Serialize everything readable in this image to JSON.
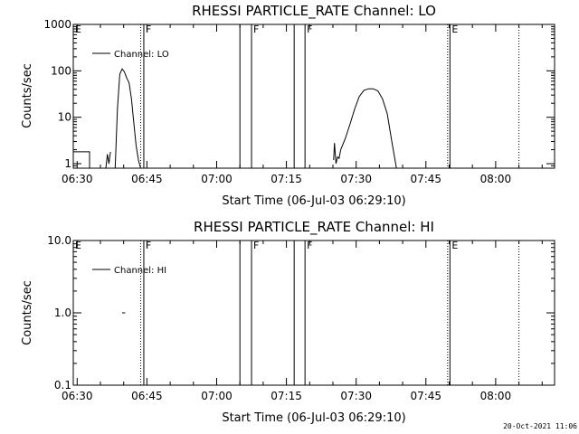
{
  "footer": {
    "timestamp": "20-Oct-2021 11:06"
  },
  "chart_data": [
    {
      "type": "line",
      "title": "RHESSI PARTICLE_RATE Channel: LO",
      "xlabel": "Start Time (06-Jul-03 06:29:10)",
      "ylabel": "Counts/sec",
      "yscale": "log",
      "ylim": [
        0.8,
        1000
      ],
      "xlim": [
        "06:29:10",
        "08:12:40"
      ],
      "xticks": [
        "06:30",
        "06:45",
        "07:00",
        "07:15",
        "07:30",
        "07:45",
        "08:00"
      ],
      "yticks": [
        "1",
        "10",
        "100",
        "1000"
      ],
      "legend": {
        "position": "top-left",
        "entries": [
          "Channel: LO"
        ]
      },
      "series": [
        {
          "name": "Channel: LO",
          "segments": [
            {
              "x": [
                "06:29:10",
                "06:29:10",
                "06:32:40",
                "06:32:40"
              ],
              "y": [
                1,
                1.8,
                1.8,
                0.8
              ]
            },
            {
              "x": [
                "06:36:10",
                "06:36:30",
                "06:36:50",
                "06:37:10"
              ],
              "y": [
                0.8,
                1.6,
                1.0,
                1.8
              ]
            },
            {
              "x": [
                "06:38:10",
                "06:38:40",
                "06:39:10",
                "06:39:40",
                "06:40:10",
                "06:40:40",
                "06:41:10",
                "06:41:40",
                "06:42:10",
                "06:42:40",
                "06:43:10",
                "06:43:40"
              ],
              "y": [
                0.8,
                15,
                85,
                110,
                95,
                70,
                55,
                25,
                8,
                2.5,
                1.2,
                0.8
              ]
            },
            {
              "x": [
                "07:25:10",
                "07:25:20",
                "07:25:40",
                "07:26:00",
                "07:26:20",
                "07:26:40"
              ],
              "y": [
                1.2,
                2.8,
                1.0,
                1.4,
                1.3,
                2.0
              ]
            },
            {
              "x": [
                "07:26:40",
                "07:27:40",
                "07:28:40",
                "07:29:40",
                "07:30:40",
                "07:31:40",
                "07:32:40",
                "07:33:40",
                "07:34:40",
                "07:35:40",
                "07:36:40",
                "07:37:40",
                "07:38:40"
              ],
              "y": [
                2.0,
                3.5,
                7,
                15,
                28,
                38,
                41,
                41,
                37,
                25,
                12,
                3,
                0.8
              ]
            }
          ]
        }
      ],
      "markers": [
        {
          "time": "06:29:10",
          "label": "E",
          "style": "solid"
        },
        {
          "time": "06:43:40",
          "label": "",
          "style": "dotted"
        },
        {
          "time": "06:44:20",
          "label": "F",
          "style": "solid"
        },
        {
          "time": "07:05:00",
          "label": "",
          "style": "solid"
        },
        {
          "time": "07:07:30",
          "label": "F",
          "style": "solid"
        },
        {
          "time": "07:16:40",
          "label": "",
          "style": "solid"
        },
        {
          "time": "07:19:00",
          "label": "F",
          "style": "solid"
        },
        {
          "time": "07:49:40",
          "label": "",
          "style": "dotted"
        },
        {
          "time": "07:50:10",
          "label": "E",
          "style": "solid"
        },
        {
          "time": "08:05:00",
          "label": "",
          "style": "dotted"
        }
      ]
    },
    {
      "type": "line",
      "title": "RHESSI PARTICLE_RATE Channel: HI",
      "xlabel": "Start Time (06-Jul-03 06:29:10)",
      "ylabel": "Counts/sec",
      "yscale": "log",
      "ylim": [
        0.1,
        10
      ],
      "xlim": [
        "06:29:10",
        "08:12:40"
      ],
      "xticks": [
        "06:30",
        "06:45",
        "07:00",
        "07:15",
        "07:30",
        "07:45",
        "08:00"
      ],
      "yticks": [
        "0.1",
        "1.0",
        "10.0"
      ],
      "legend": {
        "position": "top-left",
        "entries": [
          "Channel: HI"
        ]
      },
      "series": [
        {
          "name": "Channel: HI",
          "segments": [
            {
              "x": [
                "06:39:40",
                "06:40:20"
              ],
              "y": [
                1.0,
                1.0
              ]
            }
          ]
        }
      ],
      "markers": [
        {
          "time": "06:29:10",
          "label": "E",
          "style": "solid"
        },
        {
          "time": "06:43:40",
          "label": "",
          "style": "dotted"
        },
        {
          "time": "06:44:20",
          "label": "F",
          "style": "solid"
        },
        {
          "time": "07:05:00",
          "label": "",
          "style": "solid"
        },
        {
          "time": "07:07:30",
          "label": "F",
          "style": "solid"
        },
        {
          "time": "07:16:40",
          "label": "",
          "style": "solid"
        },
        {
          "time": "07:19:00",
          "label": "F",
          "style": "solid"
        },
        {
          "time": "07:49:40",
          "label": "",
          "style": "dotted"
        },
        {
          "time": "07:50:10",
          "label": "E",
          "style": "solid"
        },
        {
          "time": "08:05:00",
          "label": "",
          "style": "dotted"
        }
      ]
    }
  ]
}
